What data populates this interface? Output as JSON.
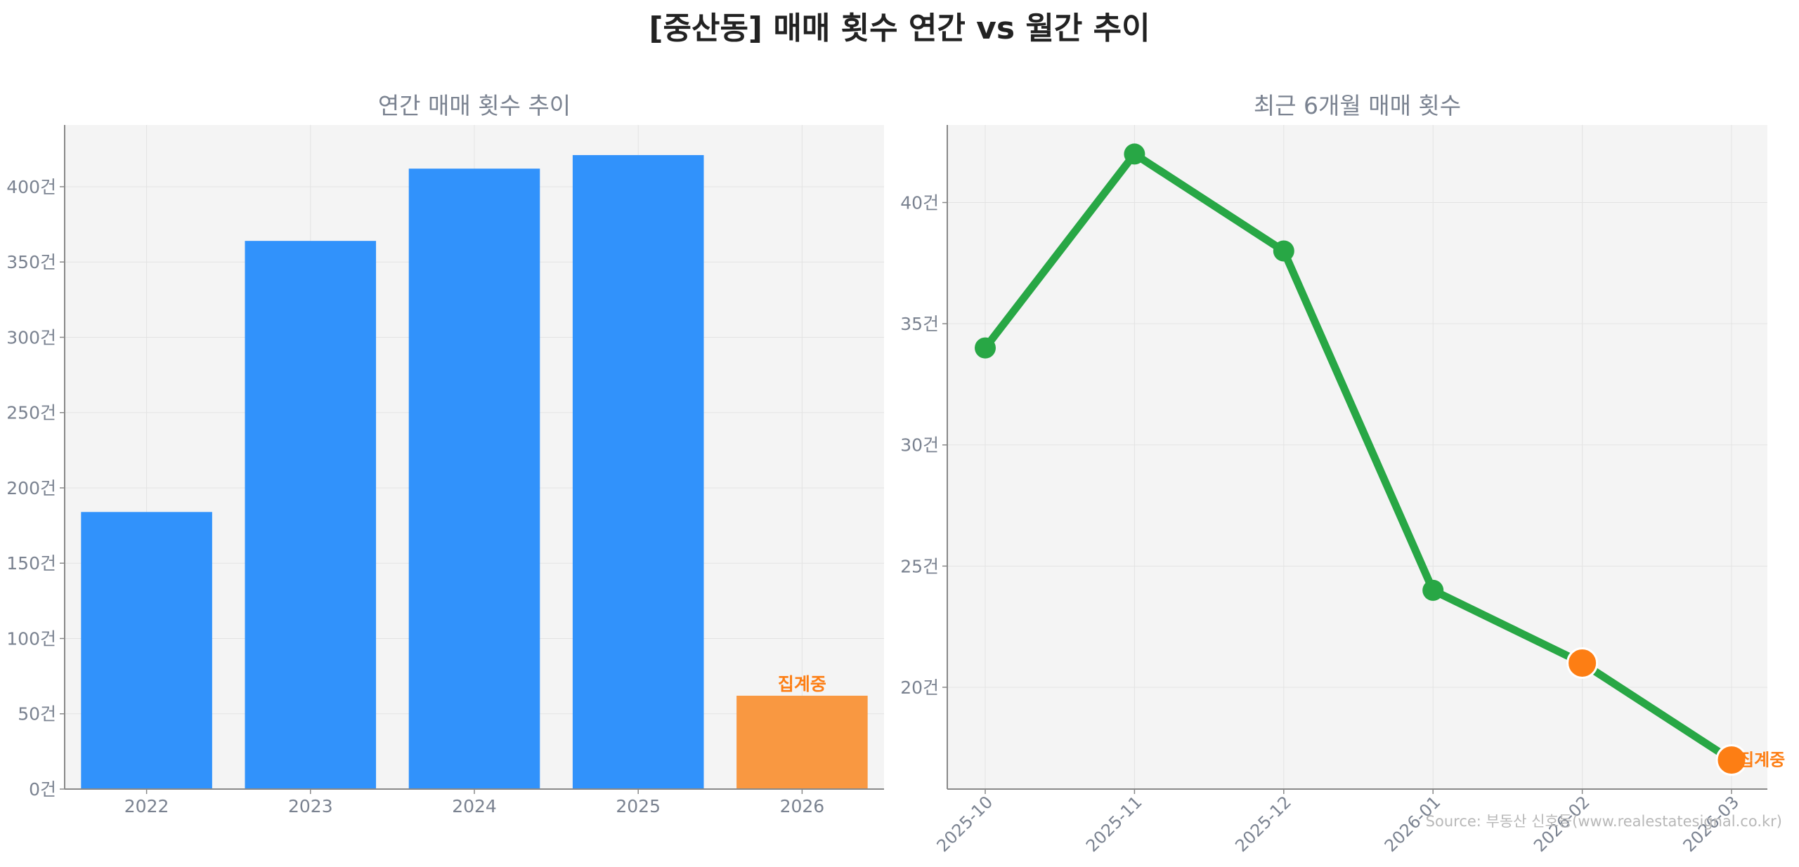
{
  "title": "[중산동] 매매 횟수 연간 vs 월간 추이",
  "source": "Source: 부동산 신호등(www.realestatesignal.co.kr)",
  "colors": {
    "bar": "#3192fb",
    "bar_partial": "#f99841",
    "line": "#28a745",
    "partial_marker": "#fd7e14",
    "partial_text": "#fd7e14",
    "plot_bg": "#f4f4f4",
    "grid": "#e3e3e3",
    "axis": "#888888",
    "tick_text": "#7a8290"
  },
  "chart_data": [
    {
      "type": "bar",
      "title": "연간 매매 횟수 추이",
      "categories": [
        "2022",
        "2023",
        "2024",
        "2025",
        "2026"
      ],
      "values": [
        184,
        364,
        412,
        421,
        62
      ],
      "partial_index": 4,
      "annotation": "집계중",
      "ylim": [
        0,
        441
      ],
      "yticks": [
        0,
        50,
        100,
        150,
        200,
        250,
        300,
        350,
        400
      ],
      "ytick_labels": [
        "0건",
        "50건",
        "100건",
        "150건",
        "200건",
        "250건",
        "300건",
        "350건",
        "400건"
      ],
      "grid": true
    },
    {
      "type": "line",
      "title": "최근 6개월 매매 횟수",
      "x": [
        "2025-10",
        "2025-11",
        "2025-12",
        "2026-01",
        "2026-02",
        "2026-03"
      ],
      "values": [
        34,
        42,
        38,
        24,
        21,
        17
      ],
      "partial_indices": [
        4,
        5
      ],
      "annotation": "집계중",
      "ylim": [
        15.8,
        43.2
      ],
      "yticks": [
        20,
        25,
        30,
        35,
        40
      ],
      "ytick_labels": [
        "20건",
        "25건",
        "30건",
        "35건",
        "40건"
      ],
      "grid": true
    }
  ]
}
